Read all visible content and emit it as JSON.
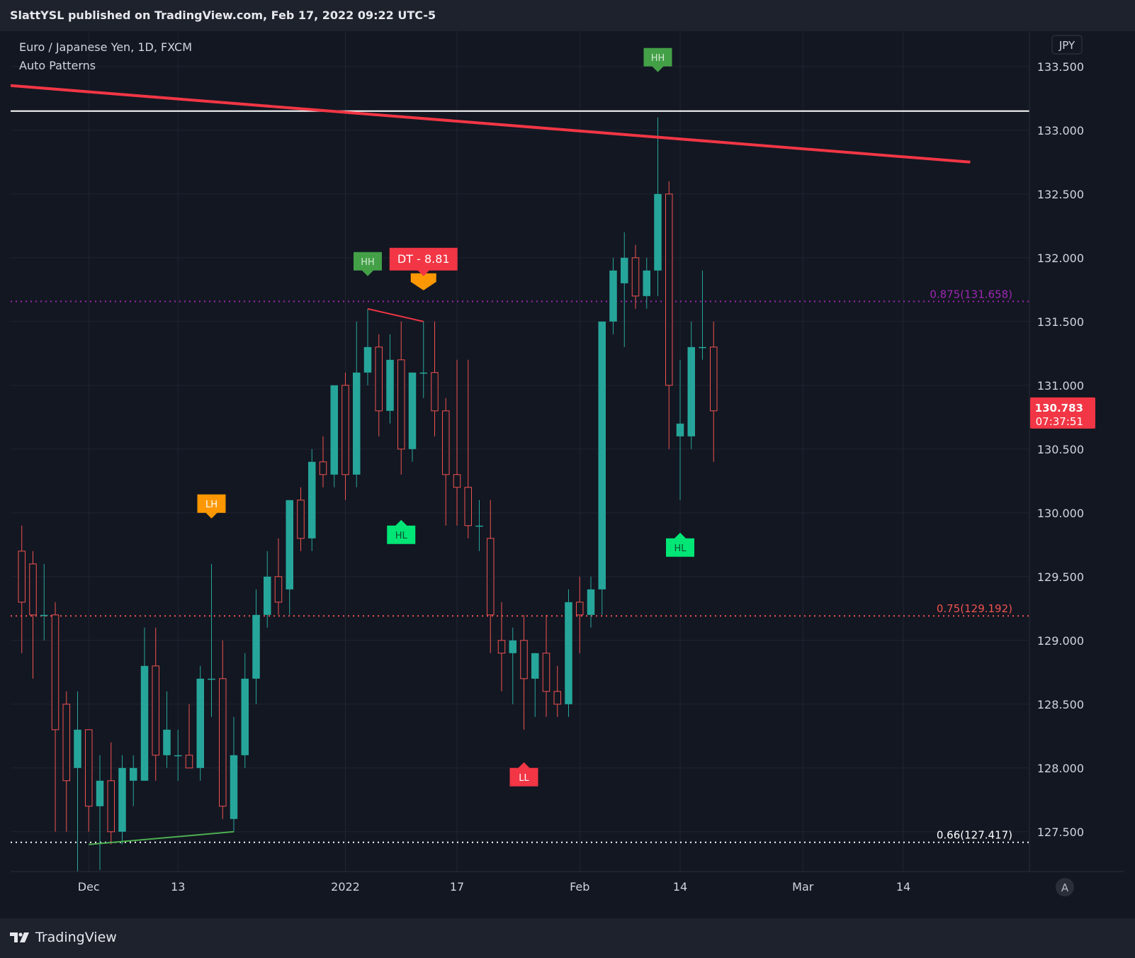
{
  "header": {
    "publish_text": "SlattYSL published on TradingView.com, Feb 17, 2022 09:22 UTC-5"
  },
  "legend": {
    "symbol_line": "Euro / Japanese Yen, 1D, FXCM",
    "indicator": "Auto Patterns"
  },
  "currency_label": "JPY",
  "auto_scale_button": "A",
  "footer": {
    "brand": "TradingView"
  },
  "colors": {
    "background": "#131722",
    "up": "#26a69a",
    "down": "#ef5350",
    "trendline": "#f23645",
    "hline": "#ffffff",
    "fib_0875": "#9c27b0",
    "fib_075": "#ef5350",
    "fib_066": "#ffffff",
    "price_tag": "#f23645"
  },
  "chart_data": {
    "type": "candlestick",
    "symbol": "Euro / Japanese Yen",
    "interval": "1D",
    "source": "FXCM",
    "y_ticks": [
      127.5,
      128.0,
      128.5,
      129.0,
      129.5,
      130.0,
      130.5,
      131.0,
      131.5,
      132.0,
      132.5,
      133.0,
      133.5
    ],
    "y_tick_labels": [
      "127.500",
      "128.000",
      "128.500",
      "129.000",
      "129.500",
      "130.000",
      "130.500",
      "131.000",
      "131.500",
      "132.000",
      "132.500",
      "133.000",
      "133.500"
    ],
    "ylim": [
      127.0,
      133.8
    ],
    "x_labels": [
      {
        "date": "2021-12-01",
        "label": "Dec"
      },
      {
        "date": "2021-12-13",
        "label": "13"
      },
      {
        "date": "2022-01-03",
        "label": "2022"
      },
      {
        "date": "2022-01-17",
        "label": "17"
      },
      {
        "date": "2022-02-01",
        "label": "Feb"
      },
      {
        "date": "2022-02-14",
        "label": "14"
      },
      {
        "date": "2022-03-01",
        "label": "Mar"
      },
      {
        "date": "2022-03-14",
        "label": "14"
      }
    ],
    "candles": [
      {
        "date": "2021-11-23",
        "open": 129.7,
        "high": 129.9,
        "low": 128.9,
        "close": 129.3
      },
      {
        "date": "2021-11-24",
        "open": 129.6,
        "high": 129.7,
        "low": 128.7,
        "close": 129.2
      },
      {
        "date": "2021-11-25",
        "open": 129.2,
        "high": 129.6,
        "low": 129.0,
        "close": 129.2
      },
      {
        "date": "2021-11-26",
        "open": 129.2,
        "high": 129.3,
        "low": 127.5,
        "close": 128.3
      },
      {
        "date": "2021-11-29",
        "open": 128.5,
        "high": 128.6,
        "low": 127.5,
        "close": 127.9
      },
      {
        "date": "2021-11-30",
        "open": 128.0,
        "high": 128.6,
        "low": 127.0,
        "close": 128.3
      },
      {
        "date": "2021-12-01",
        "open": 128.3,
        "high": 128.3,
        "low": 127.5,
        "close": 127.7
      },
      {
        "date": "2021-12-02",
        "open": 127.7,
        "high": 128.1,
        "low": 127.2,
        "close": 127.9
      },
      {
        "date": "2021-12-03",
        "open": 127.9,
        "high": 128.2,
        "low": 127.4,
        "close": 127.5
      },
      {
        "date": "2021-12-06",
        "open": 127.5,
        "high": 128.1,
        "low": 127.4,
        "close": 128.0
      },
      {
        "date": "2021-12-07",
        "open": 127.9,
        "high": 128.1,
        "low": 127.7,
        "close": 128.0
      },
      {
        "date": "2021-12-08",
        "open": 127.9,
        "high": 129.1,
        "low": 127.9,
        "close": 128.8
      },
      {
        "date": "2021-12-09",
        "open": 128.8,
        "high": 129.1,
        "low": 127.9,
        "close": 128.1
      },
      {
        "date": "2021-12-10",
        "open": 128.1,
        "high": 128.6,
        "low": 128.0,
        "close": 128.3
      },
      {
        "date": "2021-12-13",
        "open": 128.1,
        "high": 128.3,
        "low": 127.9,
        "close": 128.1
      },
      {
        "date": "2021-12-14",
        "open": 128.1,
        "high": 128.5,
        "low": 128.0,
        "close": 128.0
      },
      {
        "date": "2021-12-15",
        "open": 128.0,
        "high": 128.8,
        "low": 127.9,
        "close": 128.7
      },
      {
        "date": "2021-12-16",
        "open": 128.7,
        "high": 129.6,
        "low": 128.4,
        "close": 128.7
      },
      {
        "date": "2021-12-17",
        "open": 128.7,
        "high": 129.0,
        "low": 127.6,
        "close": 127.7
      },
      {
        "date": "2021-12-20",
        "open": 127.6,
        "high": 128.4,
        "low": 127.5,
        "close": 128.1
      },
      {
        "date": "2021-12-21",
        "open": 128.1,
        "high": 128.9,
        "low": 128.0,
        "close": 128.7
      },
      {
        "date": "2021-12-22",
        "open": 128.7,
        "high": 129.4,
        "low": 128.5,
        "close": 129.2
      },
      {
        "date": "2021-12-23",
        "open": 129.2,
        "high": 129.7,
        "low": 129.1,
        "close": 129.5
      },
      {
        "date": "2021-12-24",
        "open": 129.5,
        "high": 129.8,
        "low": 129.2,
        "close": 129.3
      },
      {
        "date": "2021-12-27",
        "open": 129.4,
        "high": 130.1,
        "low": 129.2,
        "close": 130.1
      },
      {
        "date": "2021-12-28",
        "open": 130.1,
        "high": 130.2,
        "low": 129.7,
        "close": 129.8
      },
      {
        "date": "2021-12-29",
        "open": 129.8,
        "high": 130.5,
        "low": 129.7,
        "close": 130.4
      },
      {
        "date": "2021-12-30",
        "open": 130.4,
        "high": 130.6,
        "low": 130.2,
        "close": 130.3
      },
      {
        "date": "2021-12-31",
        "open": 130.3,
        "high": 131.0,
        "low": 130.2,
        "close": 131.0
      },
      {
        "date": "2022-01-03",
        "open": 131.0,
        "high": 131.1,
        "low": 130.1,
        "close": 130.3
      },
      {
        "date": "2022-01-04",
        "open": 130.3,
        "high": 131.5,
        "low": 130.2,
        "close": 131.1
      },
      {
        "date": "2022-01-05",
        "open": 131.1,
        "high": 131.6,
        "low": 131.0,
        "close": 131.3
      },
      {
        "date": "2022-01-06",
        "open": 131.3,
        "high": 131.4,
        "low": 130.6,
        "close": 130.8
      },
      {
        "date": "2022-01-07",
        "open": 130.8,
        "high": 131.4,
        "low": 130.7,
        "close": 131.2
      },
      {
        "date": "2022-01-10",
        "open": 131.2,
        "high": 131.5,
        "low": 130.3,
        "close": 130.5
      },
      {
        "date": "2022-01-11",
        "open": 130.5,
        "high": 131.1,
        "low": 130.4,
        "close": 131.1
      },
      {
        "date": "2022-01-12",
        "open": 131.1,
        "high": 131.5,
        "low": 130.9,
        "close": 131.1
      },
      {
        "date": "2022-01-13",
        "open": 131.1,
        "high": 131.5,
        "low": 130.6,
        "close": 130.8
      },
      {
        "date": "2022-01-14",
        "open": 130.8,
        "high": 130.9,
        "low": 129.9,
        "close": 130.3
      },
      {
        "date": "2022-01-17",
        "open": 130.3,
        "high": 131.2,
        "low": 129.9,
        "close": 130.2
      },
      {
        "date": "2022-01-18",
        "open": 130.2,
        "high": 131.2,
        "low": 129.8,
        "close": 129.9
      },
      {
        "date": "2022-01-19",
        "open": 129.9,
        "high": 130.1,
        "low": 129.7,
        "close": 129.9
      },
      {
        "date": "2022-01-20",
        "open": 129.8,
        "high": 130.1,
        "low": 128.9,
        "close": 129.2
      },
      {
        "date": "2022-01-21",
        "open": 129.0,
        "high": 129.3,
        "low": 128.6,
        "close": 128.9
      },
      {
        "date": "2022-01-24",
        "open": 128.9,
        "high": 129.1,
        "low": 128.5,
        "close": 129.0
      },
      {
        "date": "2022-01-25",
        "open": 129.0,
        "high": 129.2,
        "low": 128.3,
        "close": 128.7
      },
      {
        "date": "2022-01-26",
        "open": 128.7,
        "high": 128.9,
        "low": 128.4,
        "close": 128.9
      },
      {
        "date": "2022-01-27",
        "open": 128.9,
        "high": 129.2,
        "low": 128.4,
        "close": 128.6
      },
      {
        "date": "2022-01-28",
        "open": 128.6,
        "high": 128.8,
        "low": 128.4,
        "close": 128.5
      },
      {
        "date": "2022-01-31",
        "open": 128.5,
        "high": 129.4,
        "low": 128.4,
        "close": 129.3
      },
      {
        "date": "2022-02-01",
        "open": 129.3,
        "high": 129.5,
        "low": 128.9,
        "close": 129.2
      },
      {
        "date": "2022-02-02",
        "open": 129.2,
        "high": 129.5,
        "low": 129.1,
        "close": 129.4
      },
      {
        "date": "2022-02-03",
        "open": 129.4,
        "high": 131.5,
        "low": 129.2,
        "close": 131.5
      },
      {
        "date": "2022-02-04",
        "open": 131.5,
        "high": 132.0,
        "low": 131.4,
        "close": 131.9
      },
      {
        "date": "2022-02-07",
        "open": 131.8,
        "high": 132.2,
        "low": 131.3,
        "close": 132.0
      },
      {
        "date": "2022-02-08",
        "open": 132.0,
        "high": 132.1,
        "low": 131.6,
        "close": 131.7
      },
      {
        "date": "2022-02-09",
        "open": 131.7,
        "high": 132.0,
        "low": 131.6,
        "close": 131.9
      },
      {
        "date": "2022-02-10",
        "open": 131.9,
        "high": 133.1,
        "low": 131.7,
        "close": 132.5
      },
      {
        "date": "2022-02-11",
        "open": 132.5,
        "high": 132.6,
        "low": 130.5,
        "close": 131.0
      },
      {
        "date": "2022-02-14",
        "open": 130.6,
        "high": 131.2,
        "low": 130.1,
        "close": 130.7
      },
      {
        "date": "2022-02-15",
        "open": 130.6,
        "high": 131.5,
        "low": 130.5,
        "close": 131.3
      },
      {
        "date": "2022-02-16",
        "open": 131.3,
        "high": 131.9,
        "low": 131.2,
        "close": 131.3
      },
      {
        "date": "2022-02-17",
        "open": 131.3,
        "high": 131.5,
        "low": 130.4,
        "close": 130.8
      }
    ],
    "current_price": {
      "label": "130.783",
      "countdown": "07:37:51"
    },
    "horizontal_line": 133.15,
    "trendline": {
      "from": {
        "date": "2021-11-22",
        "price": 133.35
      },
      "to": {
        "date": "2022-03-22",
        "price": 132.75
      }
    },
    "fib_levels": [
      {
        "label": "0.875(131.658)",
        "price": 131.658,
        "color": "#9c27b0"
      },
      {
        "label": "0.75(129.192)",
        "price": 129.192,
        "color": "#ef5350"
      },
      {
        "label": "0.66(127.417)",
        "price": 127.417,
        "color": "#ffffff"
      }
    ],
    "pattern_lines": [
      {
        "from": {
          "date": "2022-01-05",
          "price": 131.6
        },
        "to": {
          "date": "2022-01-12",
          "price": 131.5
        },
        "color": "#f23645"
      },
      {
        "from": {
          "date": "2021-12-01",
          "price": 127.4
        },
        "to": {
          "date": "2021-12-20",
          "price": 127.5
        },
        "color": "#4caf50"
      }
    ],
    "pivot_labels": [
      {
        "text": "HH",
        "date": "2022-01-05",
        "price": 131.9,
        "direction": "down",
        "color": "#43a047",
        "text_color": "#d0e8d0"
      },
      {
        "text": "DT - 8.81",
        "date": "2022-01-12",
        "price": 131.9,
        "direction": "down",
        "color": "#f23645",
        "text_color": "#ffffff",
        "underlay_color": "#ff9800"
      },
      {
        "text": "LH",
        "date": "2021-12-16",
        "price": 130.0,
        "direction": "down",
        "color": "#ff9800",
        "text_color": "#ffffff"
      },
      {
        "text": "HL",
        "date": "2022-01-10",
        "price": 129.9,
        "direction": "up",
        "color": "#00e676",
        "text_color": "#0f5132"
      },
      {
        "text": "HH",
        "date": "2022-02-10",
        "price": 133.5,
        "direction": "down",
        "color": "#43a047",
        "text_color": "#d0e8d0"
      },
      {
        "text": "HL",
        "date": "2022-02-14",
        "price": 129.8,
        "direction": "up",
        "color": "#00e676",
        "text_color": "#0f5132"
      },
      {
        "text": "LL",
        "date": "2022-01-25",
        "price": 128.0,
        "direction": "up",
        "color": "#f23645",
        "text_color": "#ffffff"
      },
      {
        "text": "",
        "date": "2021-12-20",
        "price": 127.0,
        "direction": "up",
        "color": "#00e676",
        "text_color": "#0f5132"
      }
    ]
  }
}
